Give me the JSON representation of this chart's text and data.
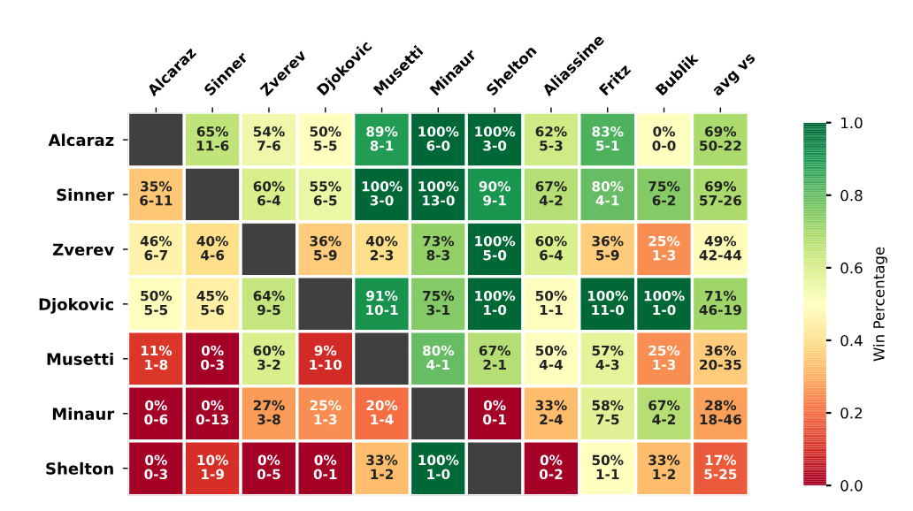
{
  "chart_data": {
    "type": "heatmap",
    "clabel": "Win Percentage",
    "categories": [
      "Alcaraz",
      "Sinner",
      "Zverev",
      "Djokovic",
      "Musetti",
      "Minaur",
      "Shelton",
      "Aliassime",
      "Fritz",
      "Bublik",
      "avg vs"
    ],
    "y_categories": [
      "Alcaraz",
      "Sinner",
      "Zverev",
      "Djokovic",
      "Musetti",
      "Minaur",
      "Shelton"
    ],
    "cells": [
      [
        null,
        0.65,
        0.54,
        0.5,
        0.89,
        1.0,
        1.0,
        0.62,
        0.83,
        0.5,
        0.69
      ],
      [
        0.35,
        null,
        0.6,
        0.55,
        1.0,
        1.0,
        0.9,
        0.67,
        0.8,
        0.75,
        0.69
      ],
      [
        0.46,
        0.4,
        null,
        0.36,
        0.4,
        0.73,
        1.0,
        0.6,
        0.36,
        0.25,
        0.49
      ],
      [
        0.5,
        0.45,
        0.64,
        null,
        0.91,
        0.75,
        1.0,
        0.5,
        1.0,
        1.0,
        0.71
      ],
      [
        0.11,
        0.0,
        0.6,
        0.09,
        null,
        0.8,
        0.67,
        0.5,
        0.57,
        0.25,
        0.36
      ],
      [
        0.0,
        0.0,
        0.27,
        0.25,
        0.2,
        null,
        0.0,
        0.33,
        0.58,
        0.67,
        0.28
      ],
      [
        0.0,
        0.1,
        0.0,
        0.0,
        0.33,
        1.0,
        null,
        0.0,
        0.5,
        0.33,
        0.17
      ]
    ],
    "cell_labels": [
      [
        null,
        "65%\n11-6",
        "54%\n7-6",
        "50%\n5-5",
        "89%\n8-1",
        "100%\n6-0",
        "100%\n3-0",
        "62%\n5-3",
        "83%\n5-1",
        "0%\n0-0",
        "69%\n50-22"
      ],
      [
        "35%\n6-11",
        null,
        "60%\n6-4",
        "55%\n6-5",
        "100%\n3-0",
        "100%\n13-0",
        "90%\n9-1",
        "67%\n4-2",
        "80%\n4-1",
        "75%\n6-2",
        "69%\n57-26"
      ],
      [
        "46%\n6-7",
        "40%\n4-6",
        null,
        "36%\n5-9",
        "40%\n2-3",
        "73%\n8-3",
        "100%\n5-0",
        "60%\n6-4",
        "36%\n5-9",
        "25%\n1-3",
        "49%\n42-44"
      ],
      [
        "50%\n5-5",
        "45%\n5-6",
        "64%\n9-5",
        null,
        "91%\n10-1",
        "75%\n3-1",
        "100%\n1-0",
        "50%\n1-1",
        "100%\n11-0",
        "100%\n1-0",
        "71%\n46-19"
      ],
      [
        "11%\n1-8",
        "0%\n0-3",
        "60%\n3-2",
        "9%\n1-10",
        null,
        "80%\n4-1",
        "67%\n2-1",
        "50%\n4-4",
        "57%\n4-3",
        "25%\n1-3",
        "36%\n20-35"
      ],
      [
        "0%\n0-6",
        "0%\n0-13",
        "27%\n3-8",
        "25%\n1-3",
        "20%\n1-4",
        null,
        "0%\n0-1",
        "33%\n2-4",
        "58%\n7-5",
        "67%\n4-2",
        "28%\n18-46"
      ],
      [
        "0%\n0-3",
        "10%\n1-9",
        "0%\n0-5",
        "0%\n0-1",
        "33%\n1-2",
        "100%\n1-0",
        null,
        "0%\n0-2",
        "50%\n1-1",
        "33%\n1-2",
        "17%\n5-25"
      ]
    ],
    "clim": [
      0.0,
      1.0
    ],
    "cticks": [
      {
        "value": 0,
        "label": "0.0"
      },
      0.2,
      0.4,
      0.6,
      0.8,
      {
        "value": 1,
        "label": "1.0"
      }
    ]
  }
}
